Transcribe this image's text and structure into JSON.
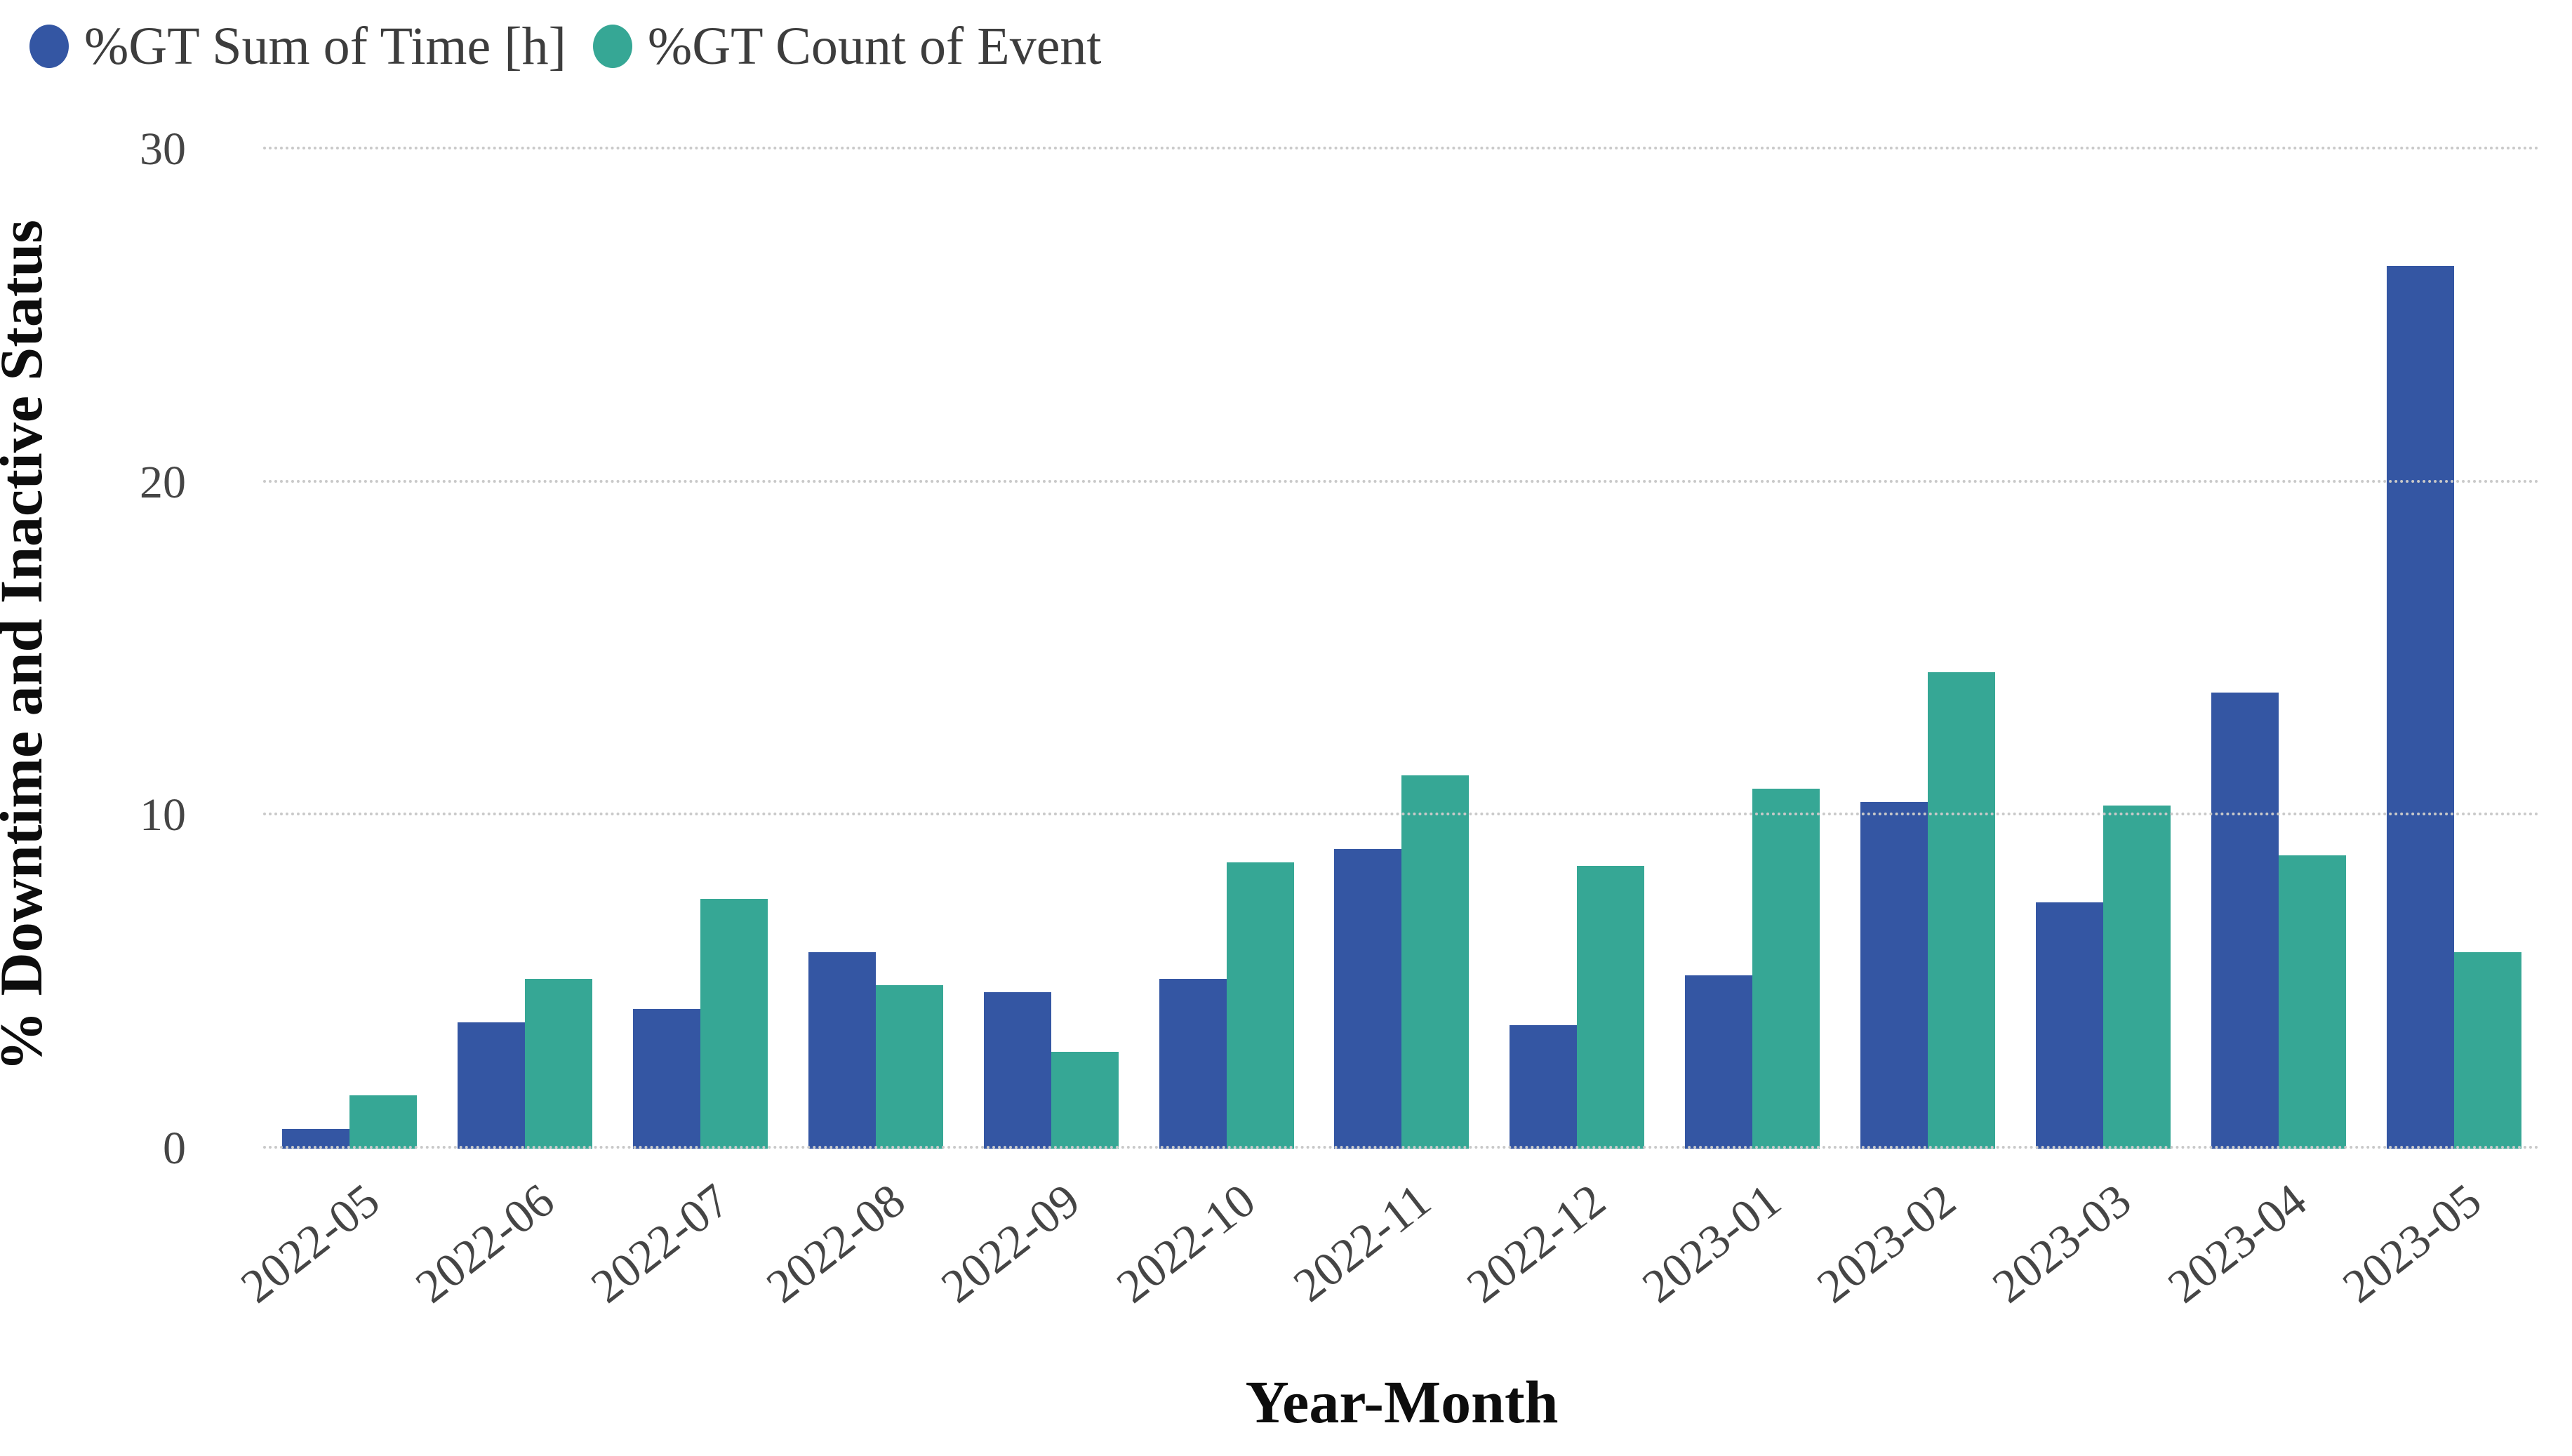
{
  "legend": {
    "items": [
      {
        "label": "%GT Sum of Time [h]",
        "color": "#3456A3",
        "icon": "legend-dot"
      },
      {
        "label": "%GT Count of Event",
        "color": "#36A795",
        "icon": "legend-dot"
      }
    ]
  },
  "y_axis": {
    "title": "% Downtime and Inactive Status",
    "tick_labels": [
      "0",
      "10",
      "20",
      "30"
    ],
    "tick_values": [
      0,
      10,
      20,
      30
    ]
  },
  "x_axis": {
    "title": "Year-Month"
  },
  "chart_data": {
    "type": "bar",
    "title": "",
    "xlabel": "Year-Month",
    "ylabel": "% Downtime and Inactive Status",
    "ylim": [
      0,
      30
    ],
    "grid": "horizontal dotted",
    "legend_position": "top-left",
    "categories": [
      "2022-05",
      "2022-06",
      "2022-07",
      "2022-08",
      "2022-09",
      "2022-10",
      "2022-11",
      "2022-12",
      "2023-01",
      "2023-02",
      "2023-03",
      "2023-04",
      "2023-05"
    ],
    "series": [
      {
        "name": "%GT Sum of Time [h]",
        "color": "#3456A3",
        "values": [
          0.6,
          3.8,
          4.2,
          5.9,
          4.7,
          5.1,
          9.0,
          3.7,
          5.2,
          10.4,
          7.4,
          13.7,
          26.5
        ]
      },
      {
        "name": "%GT Count of Event",
        "color": "#36A795",
        "values": [
          1.6,
          5.1,
          7.5,
          4.9,
          2.9,
          8.6,
          11.2,
          8.5,
          10.8,
          14.3,
          10.3,
          8.8,
          5.9
        ]
      }
    ],
    "colors": {
      "gridline": "#c9c9c9",
      "tick_text": "#454545",
      "axis_title_text": "#0d0d0d",
      "legend_text": "#3d3d3d"
    }
  }
}
